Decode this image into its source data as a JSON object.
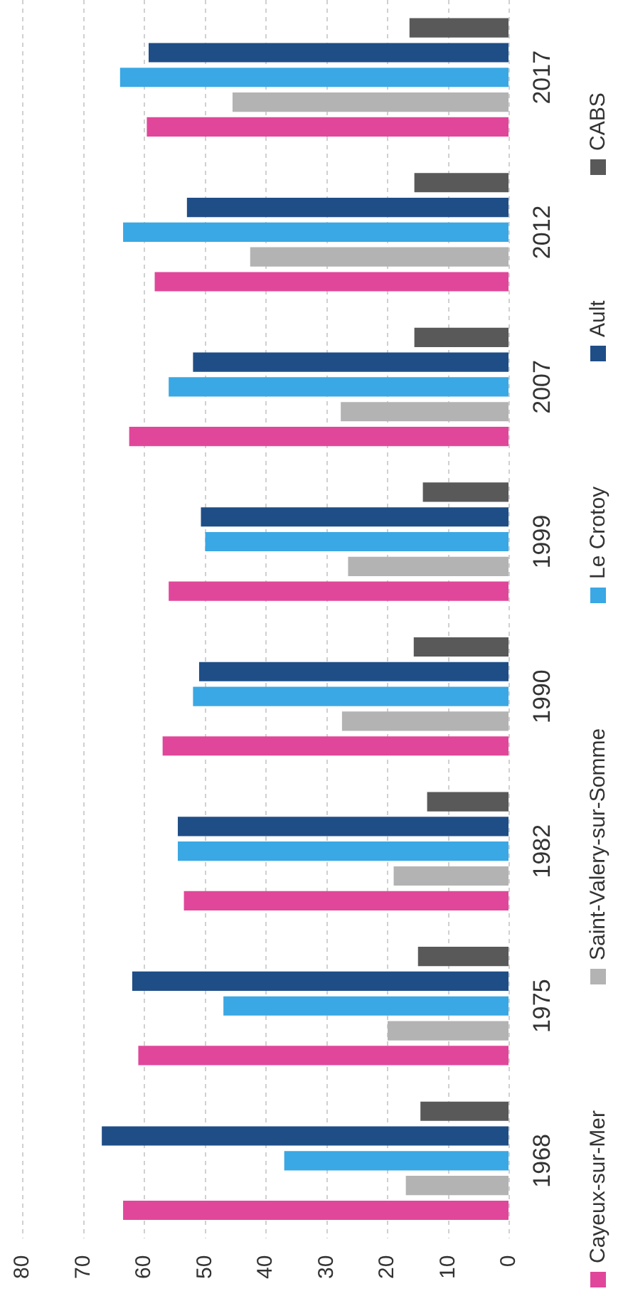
{
  "chart_data": {
    "type": "bar",
    "orientation": "horizontal",
    "categories": [
      "2017",
      "2012",
      "2007",
      "1999",
      "1990",
      "1982",
      "1975",
      "1968"
    ],
    "series": [
      {
        "name": "Cayeux-sur-Mer",
        "color": "#e0479a",
        "values": [
          59.6,
          58.3,
          62.5,
          56,
          57,
          53.5,
          61,
          63.5
        ]
      },
      {
        "name": "Saint-Valery-sur-Somme",
        "color": "#b3b3b3",
        "values": [
          45.5,
          42.6,
          27.7,
          26.5,
          27.5,
          19,
          20,
          17
        ]
      },
      {
        "name": "Le Crotoy",
        "color": "#3aa8e4",
        "values": [
          64,
          63.5,
          56,
          50,
          52,
          54.5,
          47,
          37
        ]
      },
      {
        "name": "Ault",
        "color": "#1f4e87",
        "values": [
          59.3,
          53,
          52,
          50.7,
          51,
          54.5,
          62,
          67
        ]
      },
      {
        "name": "CABS",
        "color": "#595959",
        "values": [
          16.4,
          15.6,
          15.6,
          14.2,
          15.7,
          13.5,
          15,
          14.6
        ]
      }
    ],
    "xlim": [
      80,
      0
    ],
    "xticks": [
      80,
      70,
      60,
      50,
      40,
      30,
      20,
      10,
      0
    ],
    "grid": "x",
    "legend": "right"
  }
}
